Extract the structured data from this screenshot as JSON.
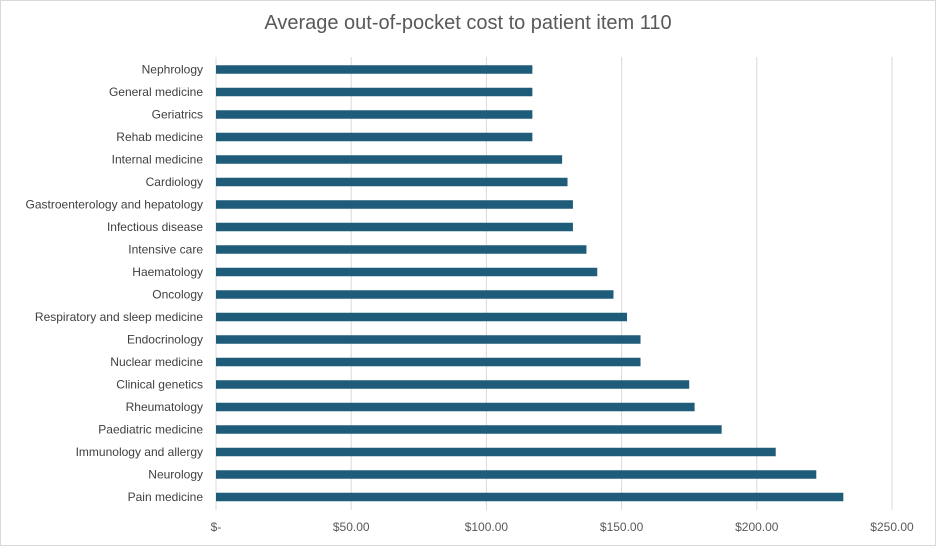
{
  "chart_data": {
    "type": "bar",
    "orientation": "horizontal",
    "title": "Average out-of-pocket cost to patient item 110",
    "xlabel": "",
    "ylabel": "",
    "categories": [
      "Nephrology",
      "General medicine",
      "Geriatrics",
      "Rehab medicine",
      "Internal medicine",
      "Cardiology",
      "Gastroenterology and hepatology",
      "Infectious disease",
      "Intensive care",
      "Haematology",
      "Oncology",
      "Respiratory and sleep medicine",
      "Endocrinology",
      "Nuclear medicine",
      "Clinical genetics",
      "Rheumatology",
      "Paediatric medicine",
      "Immunology and allergy",
      "Neurology",
      "Pain medicine"
    ],
    "values": [
      117,
      117,
      117,
      117,
      128,
      130,
      132,
      132,
      137,
      141,
      147,
      152,
      157,
      157,
      175,
      177,
      187,
      207,
      222,
      232
    ],
    "xlim": [
      0,
      250
    ],
    "x_ticks": [
      0,
      50,
      100,
      150,
      200,
      250
    ],
    "x_tick_labels": [
      "$-",
      "$50.00",
      "$100.00",
      "$150.00",
      "$200.00",
      "$250.00"
    ],
    "bar_color": "#1f5c7a",
    "gridlines": true,
    "legend": "none"
  }
}
